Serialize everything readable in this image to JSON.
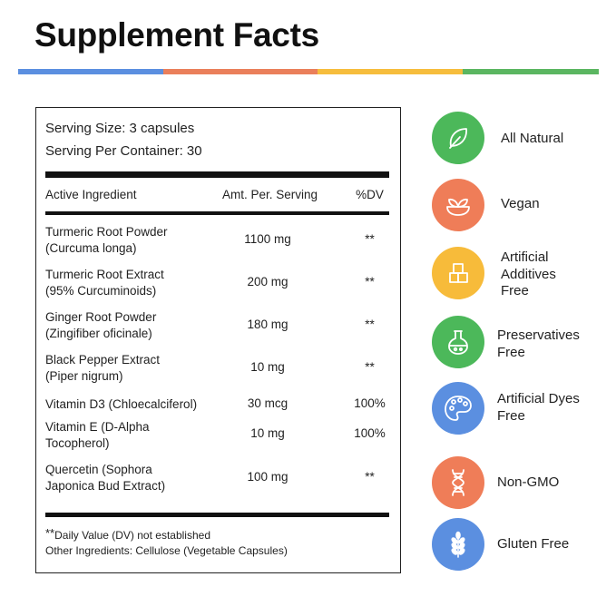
{
  "header": {
    "title": "Supplement Facts",
    "stripe_colors": [
      "#5b8fe0",
      "#ea7f5b",
      "#f6bd3d",
      "#5bb661"
    ]
  },
  "facts": {
    "serving_size": "Serving Size:  3 capsules",
    "servings_per_container": "Serving Per Container: 30",
    "columns": {
      "ingredient": "Active Ingredient",
      "amount": "Amt. Per. Serving",
      "dv": "%DV"
    },
    "rows": [
      {
        "name": "Turmeric Root Powder\n(Curcuma longa)",
        "amount": "1100 mg",
        "dv": "**"
      },
      {
        "name": "Turmeric Root Extract\n(95% Curcuminoids)",
        "amount": "200 mg",
        "dv": "**"
      },
      {
        "name": "Ginger Root Powder\n(Zingifiber oficinale)",
        "amount": "180 mg",
        "dv": "**"
      },
      {
        "name": "Black Pepper Extract\n(Piper nigrum)",
        "amount": "10 mg",
        "dv": "**"
      },
      {
        "name": "Vitamin D3 (Chloecalciferol)",
        "amount": "30 mcg",
        "dv": "100%"
      },
      {
        "name": "Vitamin E (D-Alpha\nTocopherol)",
        "amount": "10 mg",
        "dv": "100%"
      },
      {
        "name": "Quercetin (Sophora\nJaponica Bud Extract)",
        "amount": "100 mg",
        "dv": "**"
      }
    ],
    "footnote_marker": "**",
    "footnote": "Daily Value (DV) not established",
    "other_ingredients": "Other Ingredients: Cellulose (Vegetable Capsules)"
  },
  "badges": [
    {
      "label": "All Natural",
      "icon": "leaf-icon",
      "color": "#4cb85a"
    },
    {
      "label": "Vegan",
      "icon": "sprout-bowl-icon",
      "color": "#ef7d58"
    },
    {
      "label": "Artificial\nAdditives\nFree",
      "icon": "sugar-cubes-icon",
      "color": "#f7bb3a"
    },
    {
      "label": "Preservatives\nFree",
      "icon": "flask-icon",
      "color": "#4cb85a"
    },
    {
      "label": "Artificial Dyes\nFree",
      "icon": "palette-icon",
      "color": "#5b8fe0"
    },
    {
      "label": "Non-GMO",
      "icon": "dna-icon",
      "color": "#ef7d58"
    },
    {
      "label": "Gluten Free",
      "icon": "wheat-icon",
      "color": "#5b8fe0"
    }
  ]
}
